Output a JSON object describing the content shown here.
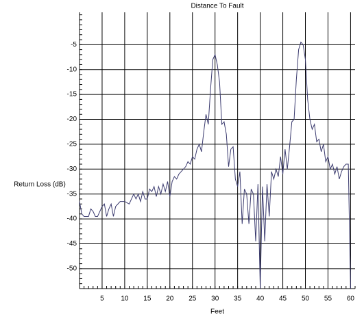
{
  "chart_data": {
    "type": "line",
    "title": "Distance To Fault",
    "x_label": "Feet",
    "y_label": "Return Loss (dB)",
    "x": [
      0,
      0.5,
      1,
      2,
      2.5,
      3,
      3.5,
      4,
      4.5,
      5,
      5.5,
      6,
      6.5,
      7,
      7.5,
      8,
      8.5,
      9,
      10,
      11,
      11.5,
      12,
      12.5,
      13,
      13.5,
      14,
      14.5,
      15,
      15.5,
      16,
      16.5,
      17,
      17.5,
      18,
      18.5,
      19,
      19.5,
      20,
      20.5,
      21,
      21.5,
      22,
      22.5,
      23,
      23.5,
      24,
      24.5,
      25,
      25.5,
      26,
      26.5,
      27,
      27.5,
      28,
      28.5,
      29,
      29.5,
      30,
      30.5,
      31,
      31.5,
      32,
      32.5,
      33,
      33.5,
      34,
      34.5,
      35,
      35.5,
      36,
      36.5,
      37,
      37.5,
      38,
      38.5,
      39,
      39.5,
      40,
      40.5,
      41,
      41.5,
      42,
      42.5,
      43,
      43.5,
      44,
      44.5,
      45,
      45.5,
      46,
      46.5,
      47,
      47.5,
      48,
      48.5,
      49,
      49.5,
      50,
      50.5,
      51,
      51.5,
      52,
      52.5,
      53,
      53.5,
      54,
      54.5,
      55,
      55.5,
      56,
      56.5,
      57,
      57.5,
      58,
      58.5,
      59,
      59.5,
      60
    ],
    "series": [
      {
        "name": "Return Loss",
        "color": "#3a3a6e",
        "values": [
          -36.5,
          -39,
          -39.5,
          -39.5,
          -38,
          -38.5,
          -39.5,
          -39.5,
          -38.5,
          -37.5,
          -37,
          -39.5,
          -38,
          -37,
          -39.5,
          -37.5,
          -37,
          -36.5,
          -36.5,
          -37,
          -36,
          -35,
          -36,
          -35,
          -36.5,
          -34.5,
          -36,
          -36,
          -34,
          -34.5,
          -33.5,
          -35.5,
          -33.5,
          -35,
          -33,
          -34.5,
          -32.5,
          -35.5,
          -32.5,
          -31.5,
          -32,
          -31,
          -30.5,
          -30,
          -29.5,
          -28.5,
          -29,
          -27.5,
          -28,
          -26,
          -25,
          -26.5,
          -22.5,
          -19,
          -21,
          -14,
          -8,
          -7,
          -9,
          -12.5,
          -21,
          -20.5,
          -23,
          -29.5,
          -26,
          -25.5,
          -32,
          -33.5,
          -30.5,
          -41,
          -34,
          -35,
          -41,
          -34,
          -35,
          -44.5,
          -33,
          -54,
          -33.5,
          -44.5,
          -33,
          -39.5,
          -30.5,
          -32,
          -30,
          -31.5,
          -27.5,
          -31,
          -26,
          -30,
          -25.5,
          -20.5,
          -20,
          -12,
          -6,
          -4.5,
          -5,
          -8,
          -16,
          -20,
          -22,
          -21,
          -24.5,
          -24,
          -26.5,
          -25,
          -28.5,
          -27.5,
          -30,
          -29,
          -31,
          -29.5,
          -32,
          -30.5,
          -29.5,
          -29,
          -29,
          -54
        ]
      }
    ],
    "xlim": [
      0,
      61
    ],
    "ylim": [
      -54,
      1.5
    ],
    "xticks": [
      5,
      10,
      15,
      20,
      25,
      30,
      35,
      40,
      45,
      50,
      55,
      60
    ],
    "yticks": [
      -5,
      -10,
      -15,
      -20,
      -25,
      -30,
      -35,
      -40,
      -45,
      -50
    ],
    "grid": true
  }
}
